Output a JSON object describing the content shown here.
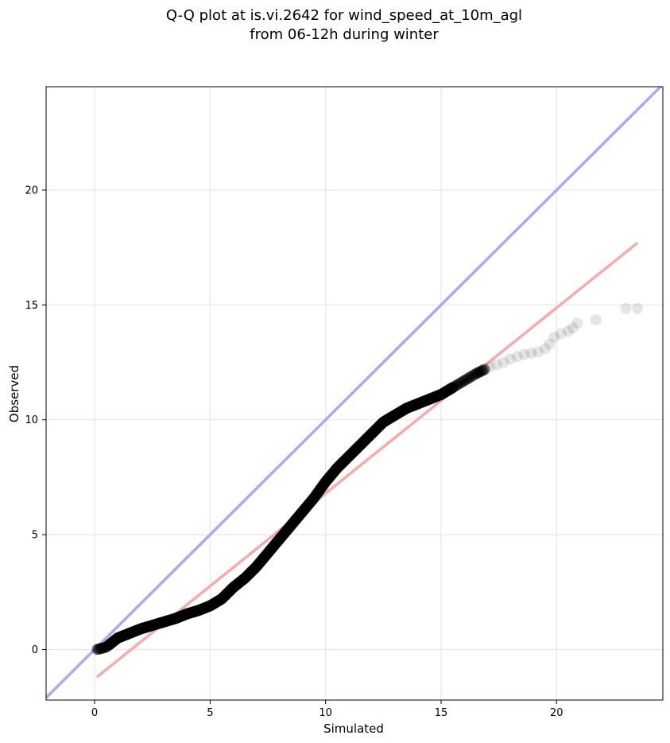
{
  "chart_data": {
    "type": "scatter",
    "title": "Q-Q plot at is.vi.2642 for wind_speed_at_10m_agl",
    "subtitle": "from 06-12h during winter",
    "xlabel": "Simulated",
    "ylabel": "Observed",
    "xlim": [
      -2.1,
      24.6
    ],
    "ylim": [
      -2.2,
      24.5
    ],
    "xticks": [
      0,
      5,
      10,
      15,
      20
    ],
    "yticks": [
      0,
      5,
      10,
      15,
      20
    ],
    "grid": true,
    "colors": {
      "points": "#000000",
      "identity_line": "#aaaaf2",
      "fit_line": "#f7aaaa"
    },
    "identity_line": {
      "x": [
        -2.1,
        24.6
      ],
      "y": [
        -2.1,
        24.6
      ]
    },
    "fit_line": {
      "x": [
        0.1,
        23.5
      ],
      "y": [
        -1.2,
        17.7
      ]
    },
    "quantile_curve": {
      "x": [
        0.1,
        0.5,
        1.0,
        1.5,
        2.0,
        2.5,
        3.0,
        3.5,
        4.0,
        4.5,
        5.0,
        5.5,
        6.0,
        6.5,
        7.0,
        7.5,
        8.0,
        8.5,
        9.0,
        9.5,
        10.0,
        10.5,
        11.0,
        11.5,
        12.0,
        12.5,
        13.0,
        13.5,
        14.0,
        14.5,
        15.0,
        15.5,
        16.0,
        16.5,
        16.9
      ],
      "y": [
        0.0,
        0.1,
        0.5,
        0.7,
        0.9,
        1.05,
        1.2,
        1.35,
        1.55,
        1.7,
        1.9,
        2.2,
        2.7,
        3.1,
        3.6,
        4.2,
        4.8,
        5.4,
        6.0,
        6.6,
        7.3,
        7.9,
        8.4,
        8.9,
        9.4,
        9.9,
        10.2,
        10.5,
        10.7,
        10.9,
        11.1,
        11.4,
        11.7,
        12.0,
        12.2
      ]
    },
    "tail_points": {
      "x": [
        17.1,
        17.4,
        17.7,
        18.0,
        18.3,
        18.6,
        18.9,
        19.2,
        19.5,
        19.7,
        19.9,
        20.2,
        20.5,
        20.7,
        20.9,
        21.7,
        23.0,
        23.5
      ],
      "y": [
        12.3,
        12.4,
        12.5,
        12.65,
        12.75,
        12.85,
        12.9,
        12.95,
        13.1,
        13.3,
        13.6,
        13.75,
        13.85,
        14.0,
        14.2,
        14.35,
        14.85,
        14.85
      ]
    }
  }
}
